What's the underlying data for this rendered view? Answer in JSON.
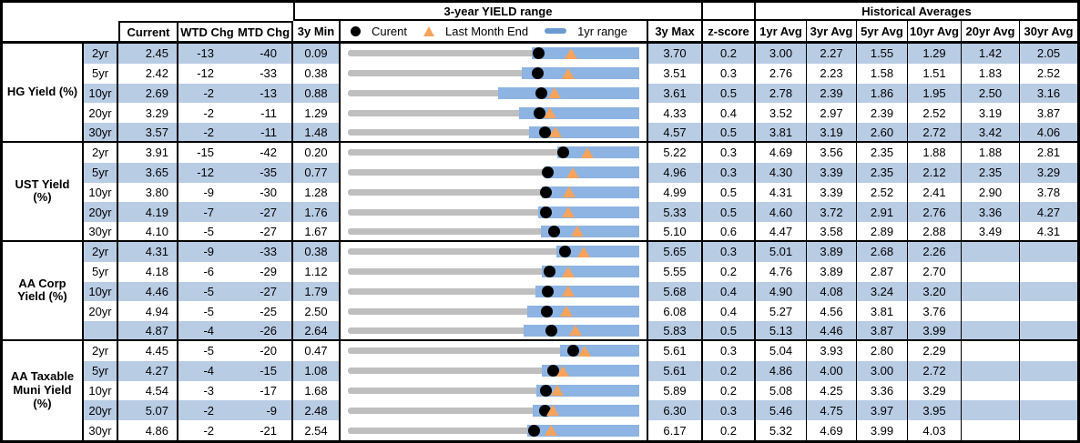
{
  "header": {
    "range_title": "3-year YIELD range",
    "hist_title": "Historical Averages",
    "col_current": "Current",
    "col_wtd": "WTD Chg",
    "col_mtd": "MTD Chg",
    "col_3ymin": "3y Min",
    "col_3ymax": "3y Max",
    "col_zscore": "z-score",
    "avg_cols": [
      "1yr Avg",
      "3yr Avg",
      "5yr Avg",
      "10yr Avg",
      "20yr Avg",
      "30yr Avg"
    ],
    "legend": {
      "current": "Curent",
      "last_month": "Last Month End",
      "range": "1yr range"
    }
  },
  "colors": {
    "stripe": "#B8CCE4",
    "bar_blue": "#8DB4E2",
    "track_gray": "#BFBFBF",
    "triangle_orange": "#F7A35C",
    "legend_dash_blue": "#6C9BD2",
    "dot_black": "#000000"
  },
  "chart_data": {
    "type": "table",
    "note": "Table of yields with embedded horizontal range-dot chart per row: gray track = 3y range (3y Min to 3y Max), blue bar = 1yr range, black dot = current yield, orange triangle = last month end yield. range1y values in %.",
    "columns": [
      "Current",
      "WTD Chg",
      "MTD Chg",
      "3y Min",
      "3y Max",
      "z-score",
      "1yr Avg",
      "3yr Avg",
      "5yr Avg",
      "10yr Avg",
      "20yr Avg",
      "30yr Avg"
    ],
    "groups": [
      {
        "label": "HG Yield (%)",
        "rows": [
          {
            "tenor": "2yr",
            "current": "2.45",
            "wtd": "-13",
            "mtd": "-40",
            "min3y": "0.09",
            "max3y": "3.70",
            "zscore": "0.2",
            "last_month_end": 2.85,
            "range1y": [
              2.37,
              3.7
            ],
            "avgs": [
              "3.00",
              "2.27",
              "1.55",
              "1.29",
              "1.42",
              "2.05"
            ]
          },
          {
            "tenor": "5yr",
            "current": "2.42",
            "wtd": "-12",
            "mtd": "-33",
            "min3y": "0.38",
            "max3y": "3.51",
            "zscore": "0.3",
            "last_month_end": 2.75,
            "range1y": [
              2.25,
              3.51
            ],
            "avgs": [
              "2.76",
              "2.23",
              "1.58",
              "1.51",
              "1.83",
              "2.52"
            ]
          },
          {
            "tenor": "10yr",
            "current": "2.69",
            "wtd": "-2",
            "mtd": "-13",
            "min3y": "0.88",
            "max3y": "3.61",
            "zscore": "0.5",
            "last_month_end": 2.82,
            "range1y": [
              2.29,
              3.61
            ],
            "avgs": [
              "2.78",
              "2.39",
              "1.86",
              "1.95",
              "2.50",
              "3.16"
            ]
          },
          {
            "tenor": "20yr",
            "current": "3.29",
            "wtd": "-2",
            "mtd": "-11",
            "min3y": "1.29",
            "max3y": "4.33",
            "zscore": "0.4",
            "last_month_end": 3.4,
            "range1y": [
              3.08,
              4.33
            ],
            "avgs": [
              "3.52",
              "2.97",
              "2.39",
              "2.52",
              "3.19",
              "3.87"
            ]
          },
          {
            "tenor": "30yr",
            "current": "3.57",
            "wtd": "-2",
            "mtd": "-11",
            "min3y": "1.48",
            "max3y": "4.57",
            "zscore": "0.5",
            "last_month_end": 3.68,
            "range1y": [
              3.4,
              4.57
            ],
            "avgs": [
              "3.81",
              "3.19",
              "2.60",
              "2.72",
              "3.42",
              "4.06"
            ]
          }
        ]
      },
      {
        "label": "UST Yield (%)",
        "rows": [
          {
            "tenor": "2yr",
            "current": "3.91",
            "wtd": "-15",
            "mtd": "-42",
            "min3y": "0.20",
            "max3y": "5.22",
            "zscore": "0.3",
            "last_month_end": 4.33,
            "range1y": [
              3.81,
              5.22
            ],
            "avgs": [
              "4.69",
              "3.56",
              "2.35",
              "1.88",
              "1.88",
              "2.81"
            ]
          },
          {
            "tenor": "5yr",
            "current": "3.65",
            "wtd": "-12",
            "mtd": "-35",
            "min3y": "0.77",
            "max3y": "4.96",
            "zscore": "0.3",
            "last_month_end": 4.0,
            "range1y": [
              3.6,
              4.96
            ],
            "avgs": [
              "4.30",
              "3.39",
              "2.35",
              "2.12",
              "2.35",
              "3.29"
            ]
          },
          {
            "tenor": "10yr",
            "current": "3.80",
            "wtd": "-9",
            "mtd": "-30",
            "min3y": "1.28",
            "max3y": "4.99",
            "zscore": "0.5",
            "last_month_end": 4.1,
            "range1y": [
              3.75,
              4.99
            ],
            "avgs": [
              "4.31",
              "3.39",
              "2.52",
              "2.41",
              "2.90",
              "3.78"
            ]
          },
          {
            "tenor": "20yr",
            "current": "4.19",
            "wtd": "-7",
            "mtd": "-27",
            "min3y": "1.76",
            "max3y": "5.33",
            "zscore": "0.5",
            "last_month_end": 4.46,
            "range1y": [
              4.09,
              5.33
            ],
            "avgs": [
              "4.60",
              "3.72",
              "2.91",
              "2.76",
              "3.36",
              "4.27"
            ]
          },
          {
            "tenor": "30yr",
            "current": "4.10",
            "wtd": "-5",
            "mtd": "-27",
            "min3y": "1.67",
            "max3y": "5.10",
            "zscore": "0.6",
            "last_month_end": 4.37,
            "range1y": [
              3.94,
              5.1
            ],
            "avgs": [
              "4.47",
              "3.58",
              "2.89",
              "2.88",
              "3.49",
              "4.31"
            ]
          }
        ]
      },
      {
        "label": "AA Corp Yield (%)",
        "rows": [
          {
            "tenor": "2yr",
            "current": "4.31",
            "wtd": "-9",
            "mtd": "-33",
            "min3y": "0.38",
            "max3y": "5.65",
            "zscore": "0.3",
            "last_month_end": 4.64,
            "range1y": [
              4.15,
              5.65
            ],
            "avgs": [
              "5.01",
              "3.89",
              "2.68",
              "2.26",
              "",
              ""
            ]
          },
          {
            "tenor": "5yr",
            "current": "4.18",
            "wtd": "-6",
            "mtd": "-29",
            "min3y": "1.12",
            "max3y": "5.55",
            "zscore": "0.2",
            "last_month_end": 4.47,
            "range1y": [
              4.07,
              5.55
            ],
            "avgs": [
              "4.76",
              "3.89",
              "2.87",
              "2.70",
              "",
              ""
            ]
          },
          {
            "tenor": "10yr",
            "current": "4.46",
            "wtd": "-5",
            "mtd": "-27",
            "min3y": "1.79",
            "max3y": "5.68",
            "zscore": "0.4",
            "last_month_end": 4.73,
            "range1y": [
              4.3,
              5.68
            ],
            "avgs": [
              "4.90",
              "4.08",
              "3.24",
              "3.20",
              "",
              ""
            ]
          },
          {
            "tenor": "20yr",
            "current": "4.94",
            "wtd": "-5",
            "mtd": "-25",
            "min3y": "2.50",
            "max3y": "6.08",
            "zscore": "0.4",
            "last_month_end": 5.19,
            "range1y": [
              4.7,
              6.08
            ],
            "avgs": [
              "5.27",
              "4.56",
              "3.81",
              "3.76",
              "",
              ""
            ]
          },
          {
            "tenor": "",
            "current": "4.87",
            "wtd": "-4",
            "mtd": "-26",
            "min3y": "2.64",
            "max3y": "5.83",
            "zscore": "0.5",
            "last_month_end": 5.13,
            "range1y": [
              4.56,
              5.83
            ],
            "avgs": [
              "5.13",
              "4.46",
              "3.87",
              "3.99",
              "",
              ""
            ]
          }
        ]
      },
      {
        "label": "AA Taxable Muni Yield (%)",
        "rows": [
          {
            "tenor": "2yr",
            "current": "4.45",
            "wtd": "-5",
            "mtd": "-20",
            "min3y": "0.47",
            "max3y": "5.61",
            "zscore": "0.3",
            "last_month_end": 4.65,
            "range1y": [
              4.22,
              5.61
            ],
            "avgs": [
              "5.04",
              "3.93",
              "2.80",
              "2.29",
              "",
              ""
            ]
          },
          {
            "tenor": "5yr",
            "current": "4.27",
            "wtd": "-4",
            "mtd": "-15",
            "min3y": "1.08",
            "max3y": "5.61",
            "zscore": "0.2",
            "last_month_end": 4.42,
            "range1y": [
              4.09,
              5.61
            ],
            "avgs": [
              "4.86",
              "4.00",
              "3.00",
              "2.72",
              "",
              ""
            ]
          },
          {
            "tenor": "10yr",
            "current": "4.54",
            "wtd": "-3",
            "mtd": "-17",
            "min3y": "1.68",
            "max3y": "5.89",
            "zscore": "0.2",
            "last_month_end": 4.71,
            "range1y": [
              4.4,
              5.89
            ],
            "avgs": [
              "5.08",
              "4.25",
              "3.36",
              "3.29",
              "",
              ""
            ]
          },
          {
            "tenor": "20yr",
            "current": "5.07",
            "wtd": "-2",
            "mtd": "-9",
            "min3y": "2.48",
            "max3y": "6.30",
            "zscore": "0.3",
            "last_month_end": 5.16,
            "range1y": [
              4.9,
              6.3
            ],
            "avgs": [
              "5.46",
              "4.75",
              "3.97",
              "3.95",
              "",
              ""
            ]
          },
          {
            "tenor": "30yr",
            "current": "4.86",
            "wtd": "-2",
            "mtd": "-21",
            "min3y": "2.54",
            "max3y": "6.17",
            "zscore": "0.2",
            "last_month_end": 5.07,
            "range1y": [
              4.78,
              6.17
            ],
            "avgs": [
              "5.32",
              "4.69",
              "3.99",
              "4.03",
              "",
              ""
            ]
          }
        ]
      }
    ]
  }
}
